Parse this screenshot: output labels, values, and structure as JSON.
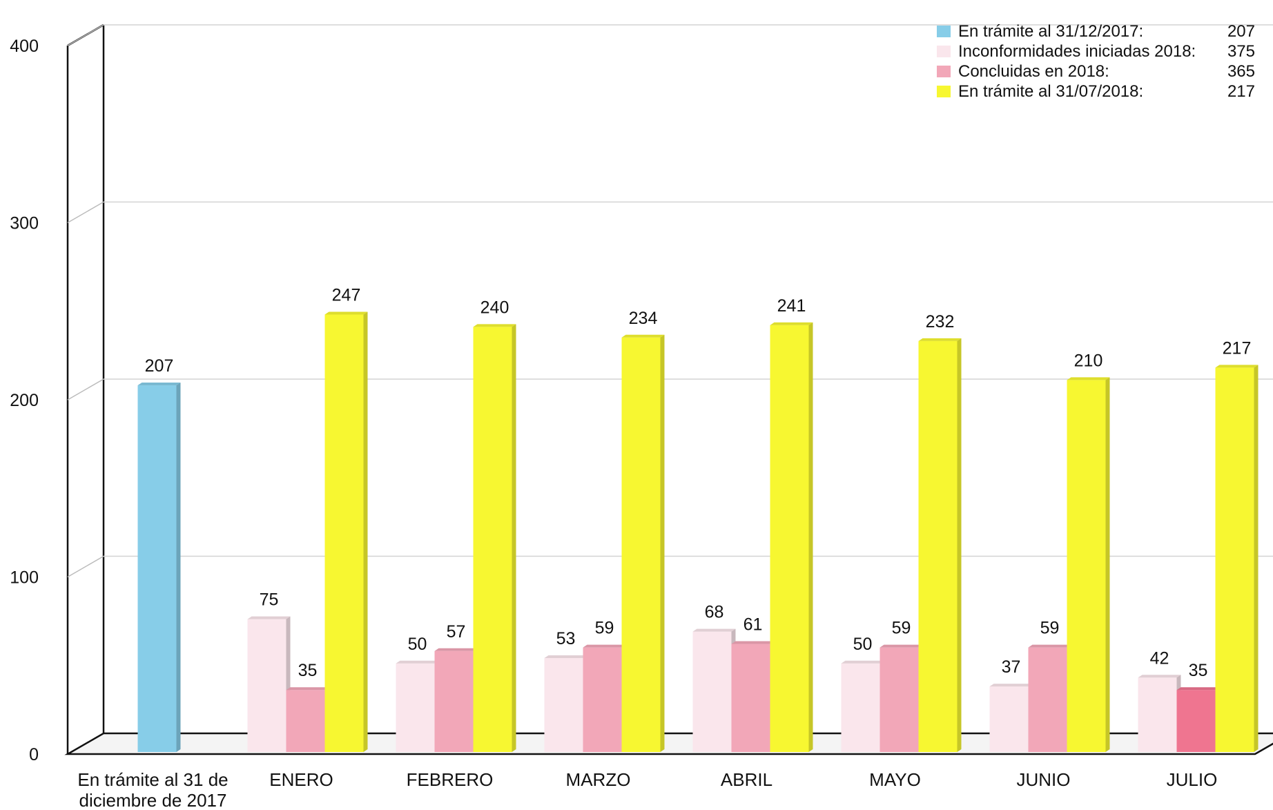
{
  "chart_data": {
    "type": "bar",
    "title": "",
    "xlabel": "",
    "ylabel": "",
    "ylim": [
      0,
      400
    ],
    "yticks": [
      "0",
      "100",
      "200",
      "300",
      "400"
    ],
    "grid": true,
    "legend_position": "top-right",
    "categories": [
      [
        "En trámite al 31 de",
        "diciembre de 2017"
      ],
      [
        "ENERO"
      ],
      [
        "FEBRERO"
      ],
      [
        "MARZO"
      ],
      [
        "ABRIL"
      ],
      [
        "MAYO"
      ],
      [
        "JUNIO"
      ],
      [
        "JULIO"
      ]
    ],
    "series": [
      {
        "name": "En trámite al 31/12/2017:",
        "total": "207",
        "color": "#87cde8",
        "values": [
          207,
          null,
          null,
          null,
          null,
          null,
          null,
          null
        ]
      },
      {
        "name": "Inconformidades iniciadas 2018:",
        "total": "375",
        "color": "#fae6ec",
        "values": [
          null,
          75,
          50,
          53,
          68,
          50,
          37,
          42
        ]
      },
      {
        "name": "Concluidas en 2018:",
        "total": "365",
        "color": "#f2a7b8",
        "values": [
          null,
          35,
          57,
          59,
          61,
          59,
          59,
          35
        ]
      },
      {
        "name": "En trámite al 31/07/2018:",
        "total": "217",
        "color": "#f7f731",
        "values": [
          null,
          247,
          240,
          234,
          241,
          232,
          210,
          217
        ]
      }
    ],
    "highlight_color": "#ef7590"
  }
}
